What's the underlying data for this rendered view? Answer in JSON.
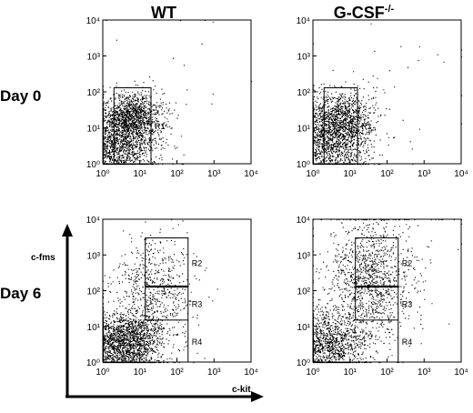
{
  "columns": [
    {
      "title": "WT",
      "superscript": ""
    },
    {
      "title": "G-CSF",
      "superscript": "-/-"
    }
  ],
  "rows": [
    "Day 0",
    "Day 6"
  ],
  "axes": {
    "x_label": "c-kit",
    "y_label": "c-fms"
  },
  "chart_data": [
    {
      "type": "scatter",
      "panel": "WT, Day 0",
      "x_scale": "log",
      "y_scale": "log",
      "xlim": [
        1,
        10000
      ],
      "ylim": [
        1,
        10000
      ],
      "xticks": [
        "10⁰",
        "10¹",
        "10²",
        "10³",
        "10⁴"
      ],
      "yticks": [
        "10⁰",
        "10¹",
        "10²",
        "10³",
        "10⁴"
      ],
      "gates": [
        {
          "label": "R1",
          "x": [
            2,
            20
          ],
          "y": [
            0.4,
            130
          ],
          "style": "box"
        }
      ],
      "clusters": [
        {
          "cx": 2.2,
          "cy": 3.5,
          "sx": 0.55,
          "sy": 0.55,
          "n": 1700
        },
        {
          "cx": 6.5,
          "cy": 20,
          "sx": 0.4,
          "sy": 0.35,
          "n": 1100
        },
        {
          "cx": 40,
          "cy": 120,
          "sx": 1.3,
          "sy": 1.2,
          "n": 28
        }
      ]
    },
    {
      "type": "scatter",
      "panel": "G-CSF-/-, Day 0",
      "x_scale": "log",
      "y_scale": "log",
      "xlim": [
        1,
        10000
      ],
      "ylim": [
        1,
        10000
      ],
      "xticks": [
        "10⁰",
        "10¹",
        "10²",
        "10³",
        "10⁴"
      ],
      "yticks": [
        "10⁰",
        "10¹",
        "10²",
        "10³",
        "10⁴"
      ],
      "gates": [
        {
          "label": "R1",
          "x": [
            2,
            16
          ],
          "y": [
            0.4,
            130
          ],
          "style": "box"
        }
      ],
      "clusters": [
        {
          "cx": 2.3,
          "cy": 3.5,
          "sx": 0.55,
          "sy": 0.55,
          "n": 1500
        },
        {
          "cx": 6,
          "cy": 18,
          "sx": 0.42,
          "sy": 0.4,
          "n": 900
        },
        {
          "cx": 60,
          "cy": 150,
          "sx": 1.2,
          "sy": 1.1,
          "n": 40
        }
      ]
    },
    {
      "type": "scatter",
      "panel": "WT, Day 6",
      "x_scale": "log",
      "y_scale": "log",
      "xlim": [
        1,
        10000
      ],
      "ylim": [
        1,
        10000
      ],
      "xticks": [
        "10⁰",
        "10¹",
        "10²",
        "10³",
        "10⁴"
      ],
      "yticks": [
        "10⁰",
        "10¹",
        "10²",
        "10³",
        "10⁴"
      ],
      "gates": [
        {
          "label": "R2",
          "x": [
            14,
            200
          ],
          "y": [
            130,
            3000
          ],
          "style": "box"
        },
        {
          "label": "R3",
          "x": [
            14,
            200
          ],
          "y": [
            15,
            130
          ],
          "style": "box"
        },
        {
          "label": "R4",
          "x": [
            14,
            200
          ],
          "y": [
            0.4,
            15
          ],
          "style": "open"
        }
      ],
      "clusters": [
        {
          "cx": 2.8,
          "cy": 3.2,
          "sx": 0.55,
          "sy": 0.45,
          "n": 1800
        },
        {
          "cx": 25,
          "cy": 100,
          "sx": 0.55,
          "sy": 0.75,
          "n": 650
        },
        {
          "cx": 9,
          "cy": 6,
          "sx": 0.35,
          "sy": 0.3,
          "n": 300
        }
      ]
    },
    {
      "type": "scatter",
      "panel": "G-CSF-/-, Day 6",
      "x_scale": "log",
      "y_scale": "log",
      "xlim": [
        1,
        10000
      ],
      "ylim": [
        1,
        10000
      ],
      "xticks": [
        "10⁰",
        "10¹",
        "10²",
        "10³",
        "10⁴"
      ],
      "yticks": [
        "10⁰",
        "10¹",
        "10²",
        "10³",
        "10⁴"
      ],
      "gates": [
        {
          "label": "R2",
          "x": [
            14,
            200
          ],
          "y": [
            130,
            3000
          ],
          "style": "box"
        },
        {
          "label": "R3",
          "x": [
            14,
            200
          ],
          "y": [
            15,
            130
          ],
          "style": "box"
        },
        {
          "label": "R4",
          "x": [
            14,
            200
          ],
          "y": [
            0.4,
            15
          ],
          "style": "open"
        }
      ],
      "clusters": [
        {
          "cx": 2.5,
          "cy": 3.2,
          "sx": 0.5,
          "sy": 0.45,
          "n": 1200
        },
        {
          "cx": 35,
          "cy": 180,
          "sx": 0.55,
          "sy": 0.9,
          "n": 1200
        },
        {
          "cx": 100,
          "cy": 2000,
          "sx": 1.0,
          "sy": 0.9,
          "n": 80
        }
      ]
    }
  ]
}
